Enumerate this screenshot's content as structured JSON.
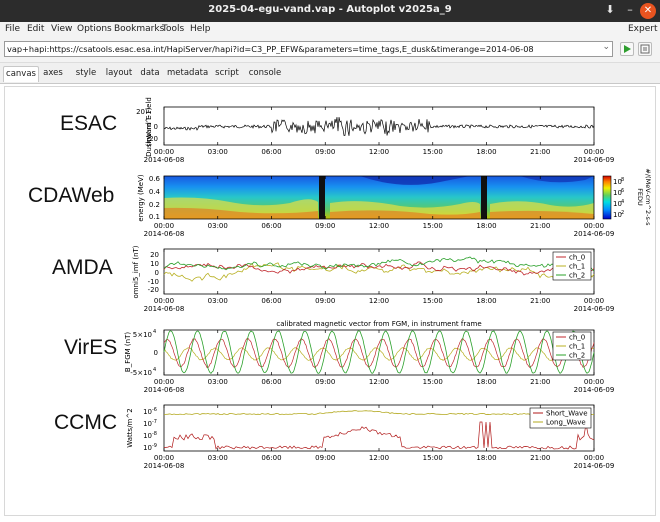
{
  "window": {
    "title": "2025-04-egu-vand.vap - Autoplot v2025a_9",
    "controls": {
      "download": "⬇",
      "minimize": "–",
      "close": "✕"
    }
  },
  "menu": {
    "items": [
      "File",
      "Edit",
      "View",
      "Options",
      "Bookmarks",
      "Tools",
      "Help"
    ],
    "right": "Expert"
  },
  "address": {
    "value": "vap+hapi:https://csatools.esac.esa.int/HapiServer/hapi?id=C3_PP_EFW&parameters=time_tags,E_dusk&timerange=2014-06-08"
  },
  "tabs": [
    "canvas",
    "axes",
    "style",
    "layout",
    "data",
    "metadata",
    "script",
    "console"
  ],
  "active_tab": "canvas",
  "time_axis": {
    "ticks": [
      "00:00",
      "03:00",
      "06:00",
      "09:00",
      "12:00",
      "15:00",
      "18:00",
      "21:00",
      "00:00"
    ],
    "start_date": "2014-06-08",
    "end_date": "2014-06-09"
  },
  "panels": {
    "esac": {
      "label": "ESAC",
      "ylabel_line1": "Duskward E Field",
      "ylabel_line2": "(mV m^-1)",
      "yticks": [
        "20",
        "0",
        "-20"
      ]
    },
    "cdaweb": {
      "label": "CDAWeb",
      "ylabel": "energy (MeV)",
      "yticks": [
        "0.6",
        "0.4",
        "0.2",
        "0.1"
      ],
      "colorbar_ticks": [
        "10",
        "10",
        "10",
        "10"
      ],
      "colorbar_exp": [
        "8",
        "6",
        "4",
        "2"
      ],
      "colorbar_title_line1": "FEDU",
      "colorbar_title_line2": "#/(MeV-cm^2-s-s"
    },
    "amda": {
      "label": "AMDA",
      "ylabel": "omni5_imf (nT)",
      "yticks": [
        "20",
        "10",
        "0",
        "-10",
        "-20"
      ],
      "legend": [
        "ch_0",
        "ch_1",
        "ch_2"
      ]
    },
    "vires": {
      "label": "VirES",
      "title": "calibrated magnetic vector from FGM, in instrument frame",
      "ylabel": "B_FGM (nT)",
      "yticks": [
        "5×10",
        "0",
        "-5×10"
      ],
      "ytick_exp": "4",
      "legend": [
        "ch_0",
        "ch_1",
        "ch_2"
      ]
    },
    "ccmc": {
      "label": "CCMC",
      "ylabel": "Watts/m^2",
      "yticks": [
        "10",
        "10",
        "10",
        "10"
      ],
      "ytick_exp": [
        "-6",
        "-7",
        "-8",
        "-9"
      ],
      "legend": [
        "Short_Wave",
        "Long_Wave"
      ]
    }
  },
  "colors": {
    "ch_0": "#c0272d",
    "ch_1": "#b8b022",
    "ch_2": "#2aa02a",
    "short_wave": "#b01818",
    "long_wave": "#b3a81e",
    "esac_trace": "#000000"
  }
}
